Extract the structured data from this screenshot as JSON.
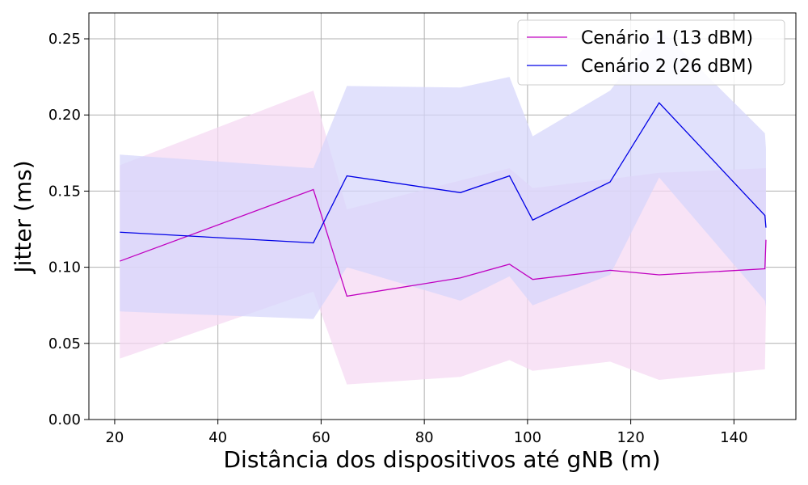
{
  "chart_data": {
    "type": "line",
    "title": "",
    "xlabel": "Distância dos dispositivos até gNB (m)",
    "ylabel": "Jitter (ms)",
    "xlim": [
      15,
      152
    ],
    "ylim": [
      0,
      0.267
    ],
    "xticks": [
      20,
      40,
      60,
      80,
      100,
      120,
      140
    ],
    "xtick_labels": [
      "20",
      "40",
      "60",
      "80",
      "100",
      "120",
      "140"
    ],
    "yticks": [
      0,
      0.05,
      0.1,
      0.15,
      0.2,
      0.25
    ],
    "ytick_labels": [
      "0.00",
      "0.05",
      "0.10",
      "0.15",
      "0.20",
      "0.25"
    ],
    "grid": true,
    "legend_position": "top-right",
    "series": [
      {
        "name": "Cenário 1 (13 dBM)",
        "color": "#c000c0",
        "band_color": "#f5d8f2",
        "x": [
          21,
          58.5,
          65,
          87,
          96.5,
          101,
          116,
          125.5,
          146,
          146.2
        ],
        "y": [
          0.104,
          0.151,
          0.081,
          0.093,
          0.102,
          0.092,
          0.098,
          0.095,
          0.099,
          0.118
        ],
        "lower": [
          0.04,
          0.084,
          0.023,
          0.028,
          0.039,
          0.032,
          0.038,
          0.026,
          0.033,
          0.071
        ],
        "upper": [
          0.167,
          0.216,
          0.138,
          0.157,
          0.165,
          0.152,
          0.158,
          0.162,
          0.165,
          0.165
        ]
      },
      {
        "name": "Cenário 2 (26 dBM)",
        "color": "#0000e6",
        "band_color": "#d6d6fb",
        "x": [
          21,
          58.5,
          65,
          87,
          96.5,
          101,
          116,
          125.5,
          146,
          146.2
        ],
        "y": [
          0.123,
          0.116,
          0.16,
          0.149,
          0.16,
          0.131,
          0.156,
          0.208,
          0.134,
          0.126
        ],
        "lower": [
          0.071,
          0.066,
          0.1,
          0.078,
          0.094,
          0.075,
          0.095,
          0.159,
          0.078,
          0.074
        ],
        "upper": [
          0.174,
          0.165,
          0.219,
          0.218,
          0.225,
          0.186,
          0.216,
          0.257,
          0.188,
          0.178
        ]
      }
    ]
  }
}
